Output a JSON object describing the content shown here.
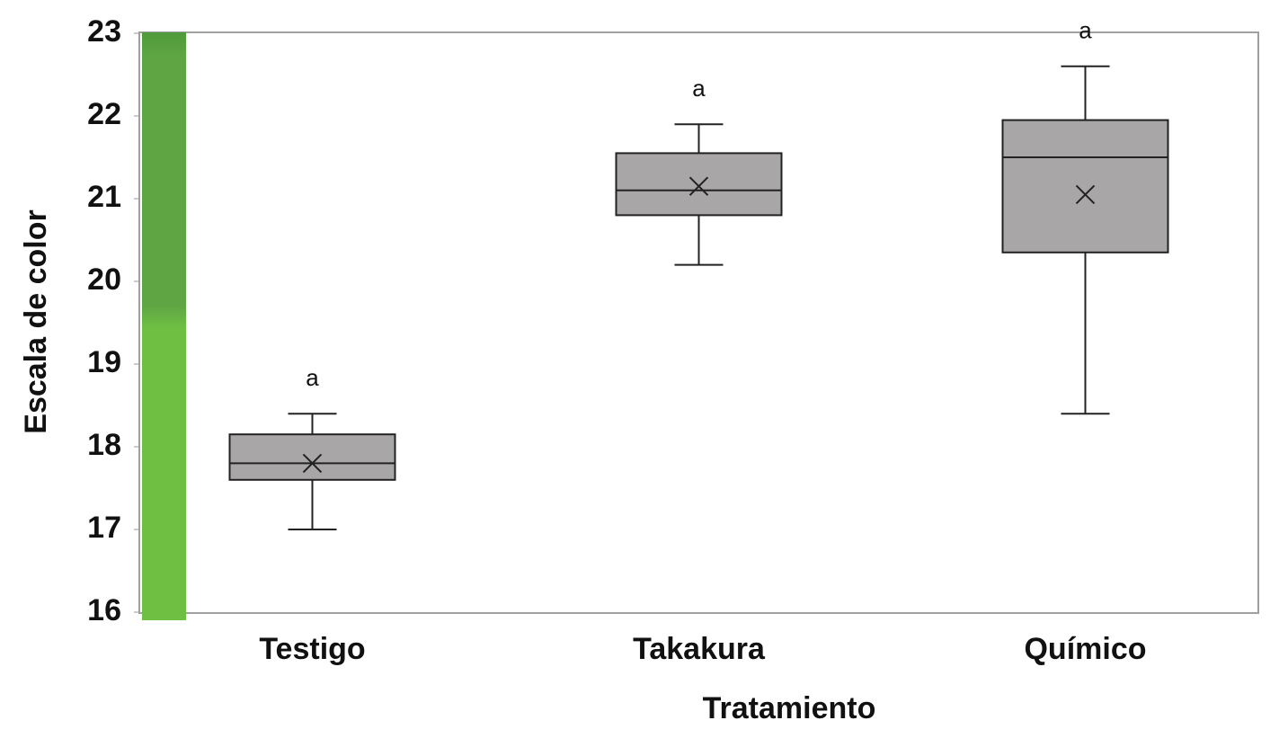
{
  "chart_data": {
    "type": "box",
    "x_label": "Tratamiento",
    "y_label": "Escala de color",
    "categories": [
      "Testigo",
      "Takakura",
      "Químico"
    ],
    "boxes": [
      {
        "min": 17.0,
        "q1": 17.6,
        "median": 17.8,
        "q3": 18.15,
        "max": 18.4,
        "mean": 17.8,
        "label": "a"
      },
      {
        "min": 20.2,
        "q1": 20.8,
        "median": 21.1,
        "q3": 21.55,
        "max": 21.9,
        "mean": 21.15,
        "label": "a"
      },
      {
        "min": 18.4,
        "q1": 20.35,
        "median": 21.5,
        "q3": 21.95,
        "max": 22.6,
        "mean": 21.05,
        "label": "a"
      }
    ],
    "color": "#a8a6a6",
    "ylim": [
      16,
      23
    ],
    "yticks": [
      16,
      17,
      18,
      19,
      20,
      21,
      22,
      23
    ]
  }
}
